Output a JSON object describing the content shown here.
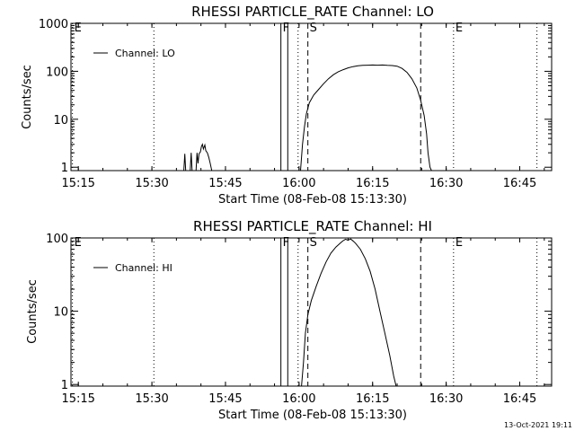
{
  "chart_data": [
    {
      "type": "line",
      "title": "RHESSI PARTICLE_RATE Channel: LO",
      "xlabel": "Start Time (08-Feb-08 15:13:30)",
      "ylabel": "Counts/sec",
      "yscale": "log",
      "ylim": [
        0.85,
        1000
      ],
      "xlim_minutes": [
        0,
        98
      ],
      "xticks": [
        {
          "label": "15:15",
          "m": 1.5
        },
        {
          "label": "15:30",
          "m": 16.5
        },
        {
          "label": "15:45",
          "m": 31.5
        },
        {
          "label": "16:00",
          "m": 46.5
        },
        {
          "label": "16:15",
          "m": 61.5
        },
        {
          "label": "16:30",
          "m": 76.5
        },
        {
          "label": "16:45",
          "m": 91.5
        }
      ],
      "yticks": [
        {
          "label": "1",
          "v": 1
        },
        {
          "label": "10",
          "v": 10
        },
        {
          "label": "100",
          "v": 100
        },
        {
          "label": "1000",
          "v": 1000
        }
      ],
      "markers": [
        {
          "label": "E",
          "m": 0.3,
          "style": "dotted"
        },
        {
          "label": "",
          "m": 16.9,
          "style": "dotted"
        },
        {
          "label": "F",
          "m": 42.8,
          "style": "solid"
        },
        {
          "label": "",
          "m": 44.2,
          "style": "solid"
        },
        {
          "label": "",
          "m": 46.3,
          "style": "dotted"
        },
        {
          "label": "S",
          "m": 48.3,
          "style": "dashed"
        },
        {
          "label": "",
          "m": 71.3,
          "style": "dashed"
        },
        {
          "label": "E",
          "m": 78.0,
          "style": "dotted"
        },
        {
          "label": "",
          "m": 95.0,
          "style": "dotted"
        }
      ],
      "legend": {
        "position": "top-left",
        "label": "Channel: LO"
      },
      "series": [
        {
          "name": "Channel: LO",
          "segments": [
            [
              [
                23.0,
                0.85
              ],
              [
                23.2,
                1.9
              ],
              [
                23.4,
                0.85
              ]
            ],
            [
              [
                24.3,
                0.85
              ],
              [
                24.5,
                2.0
              ],
              [
                24.7,
                0.85
              ]
            ],
            [
              [
                25.5,
                0.85
              ],
              [
                25.7,
                2.0
              ],
              [
                25.9,
                1.2
              ],
              [
                26.1,
                1.9
              ],
              [
                26.4,
                2.1
              ],
              [
                26.6,
                2.7
              ],
              [
                26.8,
                3.0
              ],
              [
                27.0,
                2.4
              ],
              [
                27.3,
                2.9
              ],
              [
                27.5,
                2.2
              ],
              [
                27.8,
                2.0
              ],
              [
                28.1,
                1.6
              ],
              [
                28.4,
                1.2
              ],
              [
                28.7,
                0.85
              ]
            ],
            [
              [
                46.8,
                0.85
              ],
              [
                47.2,
                3.0
              ],
              [
                47.6,
                7.0
              ],
              [
                48.0,
                13.0
              ],
              [
                48.6,
                22.0
              ],
              [
                49.5,
                32.0
              ],
              [
                50.5,
                42.0
              ],
              [
                51.5,
                55.0
              ],
              [
                52.5,
                70.0
              ],
              [
                53.5,
                85.0
              ],
              [
                54.5,
                98.0
              ],
              [
                55.5,
                108.0
              ],
              [
                56.5,
                118.0
              ],
              [
                57.5,
                125.0
              ],
              [
                58.5,
                130.0
              ],
              [
                59.5,
                133.0
              ],
              [
                60.5,
                134.0
              ],
              [
                61.5,
                135.0
              ],
              [
                62.5,
                134.0
              ],
              [
                63.5,
                135.0
              ],
              [
                64.5,
                133.0
              ],
              [
                65.5,
                132.0
              ],
              [
                66.5,
                128.0
              ],
              [
                67.5,
                115.0
              ],
              [
                68.5,
                95.0
              ],
              [
                69.5,
                70.0
              ],
              [
                70.5,
                45.0
              ],
              [
                71.3,
                25.0
              ],
              [
                72.0,
                12.0
              ],
              [
                72.5,
                5.0
              ],
              [
                72.8,
                2.0
              ],
              [
                73.2,
                1.0
              ],
              [
                73.5,
                0.85
              ]
            ]
          ]
        }
      ]
    },
    {
      "type": "line",
      "title": "RHESSI PARTICLE_RATE Channel: HI",
      "xlabel": "Start Time (08-Feb-08 15:13:30)",
      "ylabel": "Counts/sec",
      "yscale": "log",
      "ylim": [
        0.95,
        100
      ],
      "xlim_minutes": [
        0,
        98
      ],
      "xticks": [
        {
          "label": "15:15",
          "m": 1.5
        },
        {
          "label": "15:30",
          "m": 16.5
        },
        {
          "label": "15:45",
          "m": 31.5
        },
        {
          "label": "16:00",
          "m": 46.5
        },
        {
          "label": "16:15",
          "m": 61.5
        },
        {
          "label": "16:30",
          "m": 76.5
        },
        {
          "label": "16:45",
          "m": 91.5
        }
      ],
      "yticks": [
        {
          "label": "1",
          "v": 1
        },
        {
          "label": "10",
          "v": 10
        },
        {
          "label": "100",
          "v": 100
        }
      ],
      "markers": [
        {
          "label": "E",
          "m": 0.3,
          "style": "dotted"
        },
        {
          "label": "",
          "m": 16.9,
          "style": "dotted"
        },
        {
          "label": "F",
          "m": 42.8,
          "style": "solid"
        },
        {
          "label": "",
          "m": 44.2,
          "style": "solid"
        },
        {
          "label": "",
          "m": 46.3,
          "style": "dotted"
        },
        {
          "label": "S",
          "m": 48.3,
          "style": "dashed"
        },
        {
          "label": "",
          "m": 71.3,
          "style": "dashed"
        },
        {
          "label": "E",
          "m": 78.0,
          "style": "dotted"
        },
        {
          "label": "",
          "m": 95.0,
          "style": "dotted"
        }
      ],
      "legend": {
        "position": "top-left",
        "label": "Channel: HI"
      },
      "series": [
        {
          "name": "Channel: HI",
          "segments": [
            [
              [
                47.0,
                0.95
              ],
              [
                47.4,
                2.0
              ],
              [
                47.8,
                5.0
              ],
              [
                48.3,
                9.0
              ],
              [
                49.0,
                14.0
              ],
              [
                50.0,
                22.0
              ],
              [
                51.0,
                33.0
              ],
              [
                52.0,
                47.0
              ],
              [
                53.0,
                62.0
              ],
              [
                54.0,
                75.0
              ],
              [
                55.0,
                86.0
              ],
              [
                55.5,
                92.0
              ],
              [
                56.0,
                96.0
              ],
              [
                56.5,
                93.0
              ],
              [
                57.0,
                97.0
              ],
              [
                57.5,
                91.0
              ],
              [
                58.0,
                85.0
              ],
              [
                59.0,
                70.0
              ],
              [
                60.0,
                52.0
              ],
              [
                61.0,
                35.0
              ],
              [
                62.0,
                20.0
              ],
              [
                63.0,
                10.0
              ],
              [
                64.0,
                5.0
              ],
              [
                65.0,
                2.5
              ],
              [
                65.8,
                1.3
              ],
              [
                66.3,
                0.95
              ]
            ]
          ]
        }
      ]
    }
  ],
  "timestamp": "13-Oct-2021 19:11"
}
